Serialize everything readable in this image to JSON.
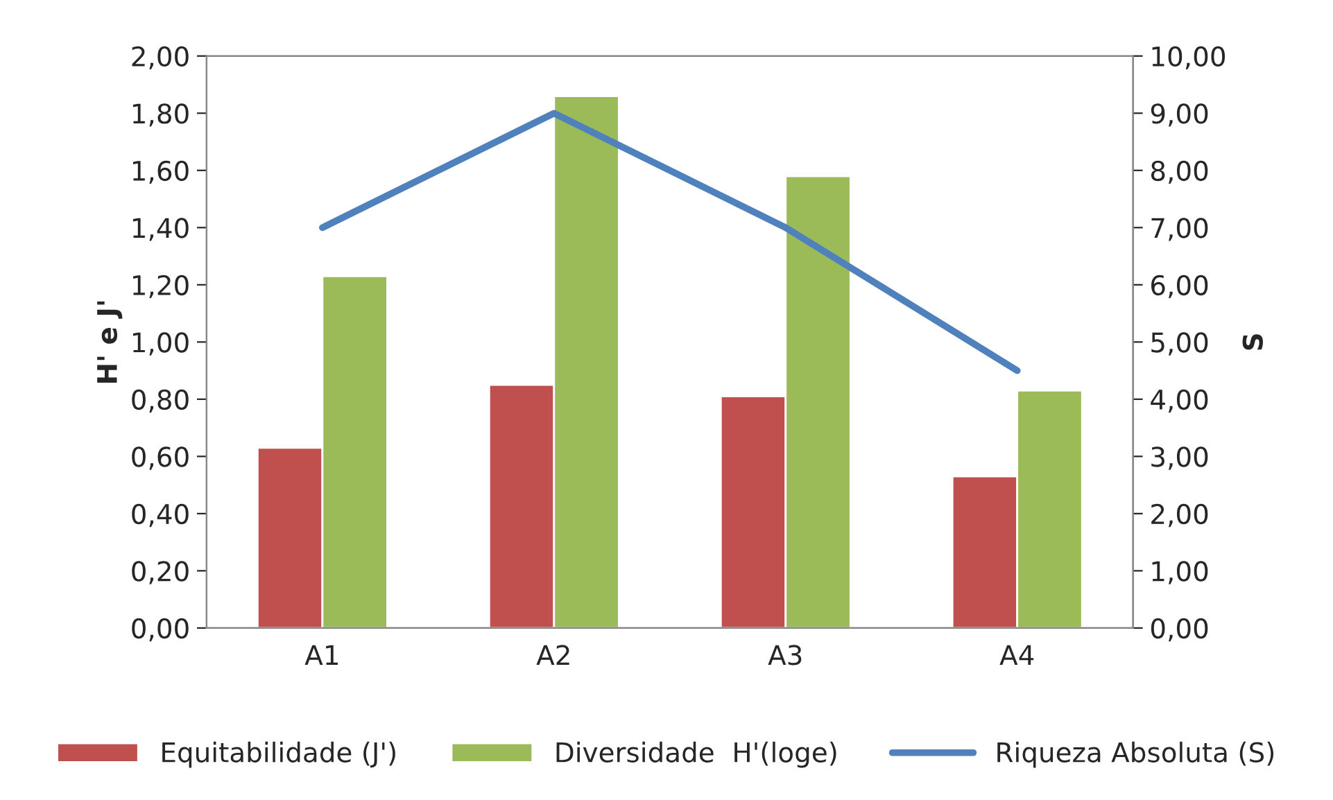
{
  "chart_data": {
    "type": "bar",
    "categories": [
      "A1",
      "A2",
      "A3",
      "A4"
    ],
    "ylabel": "H' e J'",
    "y2label": "S",
    "series": [
      {
        "name": "Equitabilidade (J')",
        "color": "#c0504d",
        "values": [
          0.63,
          0.85,
          0.81,
          0.53
        ]
      },
      {
        "name": "Diversidade  H'(loge)",
        "color": "#9bbb59",
        "values": [
          1.23,
          1.86,
          1.58,
          0.83
        ]
      },
      {
        "name": "Riqueza Absoluta (S)",
        "type": "line",
        "axis": "y2",
        "color": "#4f81bd",
        "values": [
          7,
          9,
          7,
          4.5
        ]
      }
    ],
    "ylim": [
      0,
      2
    ],
    "yticks": [
      {
        "value": 0,
        "label": "0,00"
      },
      {
        "value": 0.2,
        "label": "0,20"
      },
      {
        "value": 0.4,
        "label": "0,40"
      },
      {
        "value": 0.6,
        "label": "0,60"
      },
      {
        "value": 0.8,
        "label": "0,80"
      },
      {
        "value": 1.0,
        "label": "1,00"
      },
      {
        "value": 1.2,
        "label": "1,20"
      },
      {
        "value": 1.4,
        "label": "1,40"
      },
      {
        "value": 1.6,
        "label": "1,60"
      },
      {
        "value": 1.8,
        "label": "1,80"
      },
      {
        "value": 2.0,
        "label": "2,00"
      }
    ],
    "y2lim": [
      0,
      10
    ],
    "y2ticks": [
      {
        "value": 0,
        "label": "0,00"
      },
      {
        "value": 1,
        "label": "1,00"
      },
      {
        "value": 2,
        "label": "2,00"
      },
      {
        "value": 3,
        "label": "3,00"
      },
      {
        "value": 4,
        "label": "4,00"
      },
      {
        "value": 5,
        "label": "5,00"
      },
      {
        "value": 6,
        "label": "6,00"
      },
      {
        "value": 7,
        "label": "7,00"
      },
      {
        "value": 8,
        "label": "8,00"
      },
      {
        "value": 9,
        "label": "9,00"
      },
      {
        "value": 10,
        "label": "10,00"
      }
    ],
    "grid": false,
    "legend": "bottom"
  }
}
